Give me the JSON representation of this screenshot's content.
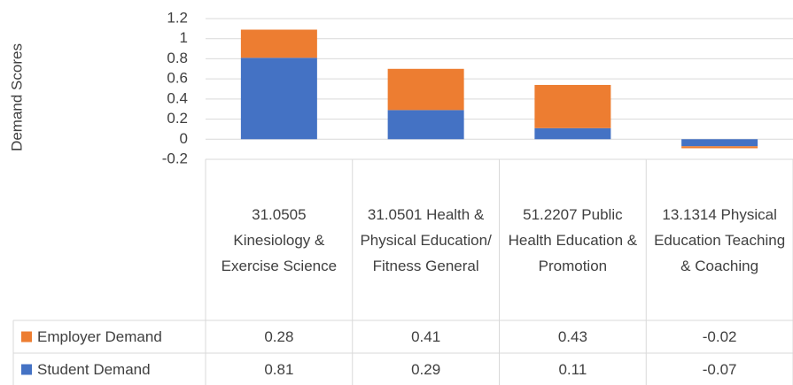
{
  "chart_data": {
    "type": "stacked_bar",
    "y_label": "Demand Scores",
    "categories": [
      "31.0505 Kinesiology & Exercise Science",
      "31.0501 Health & Physical Education/ Fitness General",
      "51.2207 Public Health Education & Promotion",
      "13.1314 Physical Education Teaching & Coaching"
    ],
    "series": [
      {
        "name": "Employer Demand",
        "color": "#ed7d31",
        "values": [
          0.28,
          0.41,
          0.43,
          -0.02
        ]
      },
      {
        "name": "Student Demand",
        "color": "#4472c4",
        "values": [
          0.81,
          0.29,
          0.11,
          -0.07
        ]
      }
    ],
    "ylim": [
      -0.2,
      1.2
    ],
    "yticks": [
      -0.2,
      0,
      0.2,
      0.4,
      0.6,
      0.8,
      1,
      1.2
    ],
    "grid": true,
    "data_table": true
  }
}
